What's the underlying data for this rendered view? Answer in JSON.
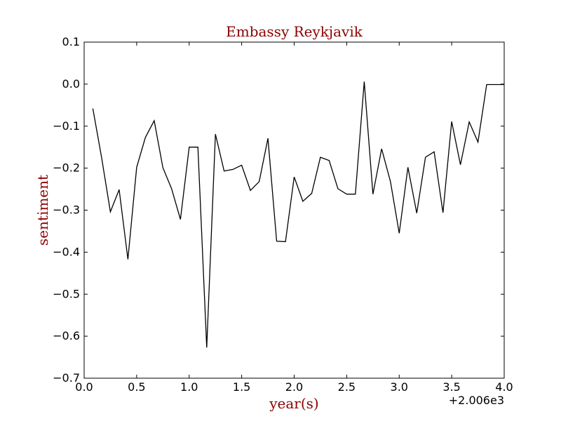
{
  "chart_data": {
    "type": "line",
    "title": "Embassy Reykjavik",
    "xlabel": "year(s)",
    "ylabel": "sentiment",
    "x_offset_label": "+2.006e3",
    "xlim": [
      0.0,
      4.0
    ],
    "ylim": [
      -0.7,
      0.1
    ],
    "x_tick_labels": [
      "0.0",
      "0.5",
      "1.0",
      "1.5",
      "2.0",
      "2.5",
      "3.0",
      "3.5",
      "4.0"
    ],
    "y_tick_labels": [
      "0.1",
      "0.0",
      "−0.1",
      "−0.2",
      "−0.3",
      "−0.4",
      "−0.5",
      "−0.6",
      "−0.7"
    ],
    "x_ticks": [
      0.0,
      0.5,
      1.0,
      1.5,
      2.0,
      2.5,
      3.0,
      3.5,
      4.0
    ],
    "y_ticks": [
      0.1,
      0.0,
      -0.1,
      -0.2,
      -0.3,
      -0.4,
      -0.5,
      -0.6,
      -0.7
    ],
    "grid": false,
    "series": [
      {
        "color": "#000000",
        "x": [
          0.083,
          0.167,
          0.25,
          0.333,
          0.417,
          0.5,
          0.583,
          0.667,
          0.75,
          0.833,
          0.917,
          1.0,
          1.083,
          1.167,
          1.25,
          1.333,
          1.417,
          1.5,
          1.583,
          1.667,
          1.75,
          1.833,
          1.917,
          2.0,
          2.083,
          2.167,
          2.25,
          2.333,
          2.417,
          2.5,
          2.583,
          2.667,
          2.75,
          2.833,
          2.917,
          3.0,
          3.083,
          3.167,
          3.25,
          3.333,
          3.417,
          3.5,
          3.583,
          3.667,
          3.75,
          3.833,
          3.917,
          4.0
        ],
        "y": [
          -0.058,
          -0.176,
          -0.304,
          -0.251,
          -0.417,
          -0.198,
          -0.127,
          -0.087,
          -0.199,
          -0.249,
          -0.322,
          -0.15,
          -0.15,
          -0.627,
          -0.119,
          -0.207,
          -0.203,
          -0.193,
          -0.253,
          -0.232,
          -0.129,
          -0.374,
          -0.375,
          -0.221,
          -0.279,
          -0.26,
          -0.174,
          -0.182,
          -0.249,
          -0.262,
          -0.262,
          0.006,
          -0.262,
          -0.154,
          -0.232,
          -0.355,
          -0.198,
          -0.307,
          -0.174,
          -0.161,
          -0.306,
          -0.089,
          -0.192,
          -0.09,
          -0.138,
          -0.001,
          -0.001,
          -0.001
        ]
      }
    ]
  }
}
